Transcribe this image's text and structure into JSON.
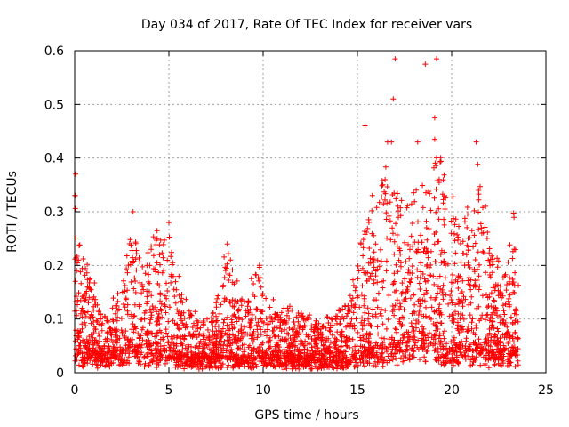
{
  "chart_data": {
    "type": "scatter",
    "title": "Day 034 of 2017, Rate Of TEC Index for receiver vars",
    "xlabel": "GPS time / hours",
    "ylabel": "ROTI / TECUs",
    "xlim": [
      0,
      25
    ],
    "ylim": [
      0,
      0.6
    ],
    "x_ticks": [
      0,
      5,
      10,
      15,
      20,
      25
    ],
    "x_tick_labels": [
      "0",
      "5",
      "10",
      "15",
      "20",
      "25"
    ],
    "y_ticks": [
      0,
      0.1,
      0.2,
      0.3,
      0.4,
      0.5,
      0.6
    ],
    "y_tick_labels": [
      "0",
      "0.1",
      "0.2",
      "0.3",
      "0.4",
      "0.5",
      "0.6"
    ],
    "grid": true,
    "marker": "+",
    "marker_color": "#ff0000",
    "data_x_range": [
      0,
      23.6
    ],
    "envelope": [
      {
        "x": 0.0,
        "base": 0.04,
        "peak": 0.37
      },
      {
        "x": 0.3,
        "base": 0.03,
        "peak": 0.26
      },
      {
        "x": 0.7,
        "base": 0.03,
        "peak": 0.2
      },
      {
        "x": 1.5,
        "base": 0.02,
        "peak": 0.1
      },
      {
        "x": 2.5,
        "base": 0.03,
        "peak": 0.16
      },
      {
        "x": 3.0,
        "base": 0.04,
        "peak": 0.3
      },
      {
        "x": 3.7,
        "base": 0.03,
        "peak": 0.2
      },
      {
        "x": 4.3,
        "base": 0.03,
        "peak": 0.27
      },
      {
        "x": 5.0,
        "base": 0.03,
        "peak": 0.27
      },
      {
        "x": 5.8,
        "base": 0.02,
        "peak": 0.14
      },
      {
        "x": 6.5,
        "base": 0.02,
        "peak": 0.1
      },
      {
        "x": 7.2,
        "base": 0.02,
        "peak": 0.09
      },
      {
        "x": 7.8,
        "base": 0.03,
        "peak": 0.18
      },
      {
        "x": 8.1,
        "base": 0.03,
        "peak": 0.24
      },
      {
        "x": 8.8,
        "base": 0.02,
        "peak": 0.14
      },
      {
        "x": 9.8,
        "base": 0.03,
        "peak": 0.2
      },
      {
        "x": 10.5,
        "base": 0.02,
        "peak": 0.13
      },
      {
        "x": 11.5,
        "base": 0.02,
        "peak": 0.12
      },
      {
        "x": 12.5,
        "base": 0.02,
        "peak": 0.1
      },
      {
        "x": 13.5,
        "base": 0.02,
        "peak": 0.1
      },
      {
        "x": 14.5,
        "base": 0.02,
        "peak": 0.14
      },
      {
        "x": 15.2,
        "base": 0.03,
        "peak": 0.3
      },
      {
        "x": 15.8,
        "base": 0.03,
        "peak": 0.35
      },
      {
        "x": 16.5,
        "base": 0.03,
        "peak": 0.4
      },
      {
        "x": 17.3,
        "base": 0.04,
        "peak": 0.33
      },
      {
        "x": 18.0,
        "base": 0.05,
        "peak": 0.33
      },
      {
        "x": 18.6,
        "base": 0.05,
        "peak": 0.37
      },
      {
        "x": 19.2,
        "base": 0.04,
        "peak": 0.42
      },
      {
        "x": 19.8,
        "base": 0.03,
        "peak": 0.35
      },
      {
        "x": 20.5,
        "base": 0.03,
        "peak": 0.26
      },
      {
        "x": 21.2,
        "base": 0.03,
        "peak": 0.41
      },
      {
        "x": 21.7,
        "base": 0.03,
        "peak": 0.34
      },
      {
        "x": 22.3,
        "base": 0.03,
        "peak": 0.22
      },
      {
        "x": 23.0,
        "base": 0.03,
        "peak": 0.2
      },
      {
        "x": 23.3,
        "base": 0.03,
        "peak": 0.34
      },
      {
        "x": 23.6,
        "base": 0.03,
        "peak": 0.16
      }
    ],
    "outliers": [
      {
        "x": 15.4,
        "y": 0.46
      },
      {
        "x": 16.6,
        "y": 0.43
      },
      {
        "x": 16.8,
        "y": 0.43
      },
      {
        "x": 17.0,
        "y": 0.585
      },
      {
        "x": 16.9,
        "y": 0.51
      },
      {
        "x": 18.2,
        "y": 0.43
      },
      {
        "x": 18.6,
        "y": 0.575
      },
      {
        "x": 19.2,
        "y": 0.585
      },
      {
        "x": 19.1,
        "y": 0.475
      },
      {
        "x": 19.1,
        "y": 0.435
      },
      {
        "x": 21.3,
        "y": 0.43
      },
      {
        "x": 0.05,
        "y": 0.37
      },
      {
        "x": 3.1,
        "y": 0.3
      },
      {
        "x": 5.0,
        "y": 0.28
      },
      {
        "x": 8.1,
        "y": 0.24
      },
      {
        "x": 9.8,
        "y": 0.2
      }
    ]
  }
}
